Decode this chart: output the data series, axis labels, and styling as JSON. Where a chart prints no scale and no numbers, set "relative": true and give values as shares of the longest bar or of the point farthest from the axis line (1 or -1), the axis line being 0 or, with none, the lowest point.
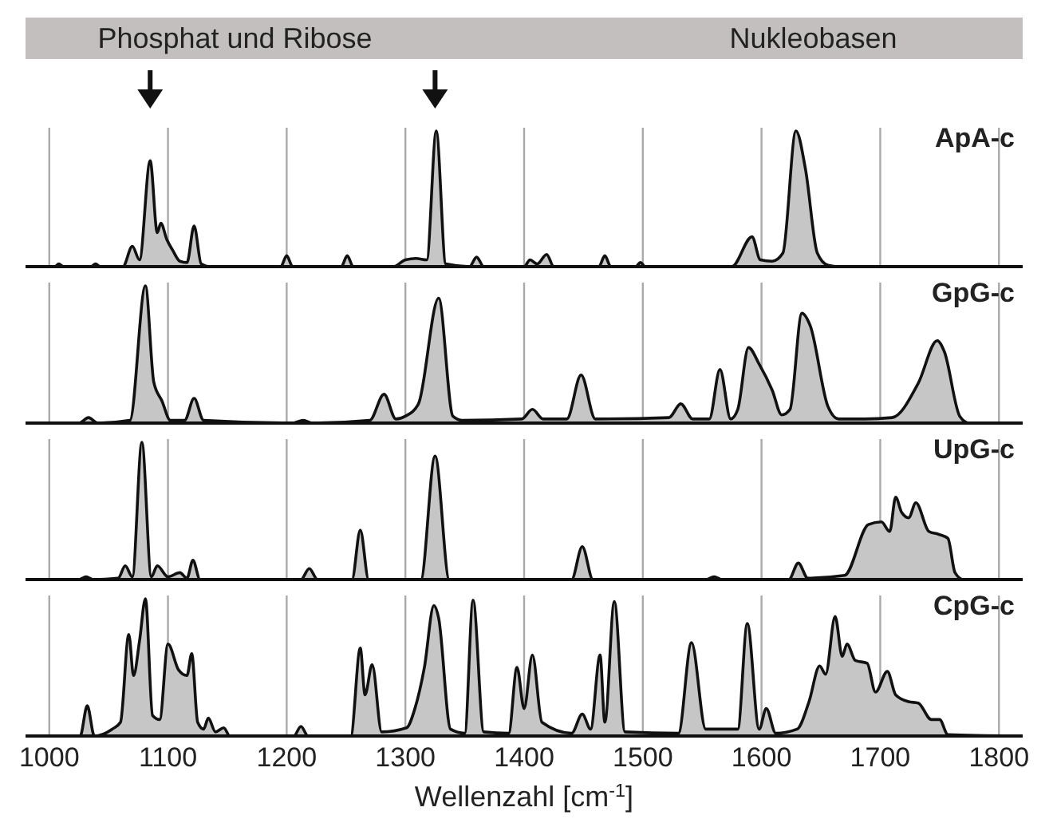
{
  "chart_data": [
    {
      "type": "area",
      "relative": true,
      "xlim": [
        980,
        1820
      ],
      "xticks": [
        1000,
        1100,
        1200,
        1300,
        1400,
        1500,
        1600,
        1700,
        1800
      ],
      "grid": "x",
      "tick_labels": false,
      "annotations": [
        "Phosphat und Ribose",
        "Nukleobasen"
      ],
      "x": [
        980,
        1005,
        1008,
        1012,
        1035,
        1039,
        1043,
        1062,
        1070,
        1076,
        1085,
        1091,
        1094,
        1099,
        1104,
        1110,
        1116,
        1122,
        1128,
        1135,
        1195,
        1200,
        1205,
        1246,
        1251,
        1256,
        1290,
        1300,
        1309,
        1318,
        1326,
        1334,
        1354,
        1360,
        1366,
        1400,
        1405,
        1411,
        1419,
        1425,
        1463,
        1468,
        1473,
        1494,
        1498,
        1502,
        1575,
        1592,
        1599,
        1609,
        1618,
        1629,
        1637,
        1647,
        1656,
        1665,
        1820
      ],
      "series": [
        {
          "name": "ApA-c",
          "color": "#c6c6c6",
          "values": [
            0,
            0,
            0.02,
            0,
            0,
            0.02,
            0,
            0,
            0.15,
            0.05,
            0.78,
            0.25,
            0.32,
            0.2,
            0.12,
            0.04,
            0.03,
            0.3,
            0.02,
            0,
            0,
            0.08,
            0,
            0,
            0.08,
            0,
            0,
            0.05,
            0.06,
            0.05,
            1,
            0.02,
            0,
            0.07,
            0,
            0,
            0.05,
            0.02,
            0.09,
            0,
            0,
            0.08,
            0,
            0,
            0.03,
            0,
            0,
            0.22,
            0.05,
            0.04,
            0.1,
            1,
            0.72,
            0.1,
            0.01,
            0,
            0
          ]
        }
      ]
    },
    {
      "type": "area",
      "relative": true,
      "xlim": [
        980,
        1820
      ],
      "xticks": [
        1000,
        1100,
        1200,
        1300,
        1400,
        1500,
        1600,
        1700,
        1800
      ],
      "grid": "x",
      "tick_labels": false,
      "x": [
        980,
        1025,
        1033,
        1041,
        1068,
        1081,
        1088,
        1095,
        1102,
        1114,
        1122,
        1130,
        1205,
        1214,
        1222,
        1270,
        1282,
        1292,
        1300,
        1311,
        1328,
        1340,
        1348,
        1398,
        1407,
        1416,
        1436,
        1448,
        1460,
        1522,
        1532,
        1542,
        1556,
        1565,
        1574,
        1580,
        1589,
        1598,
        1609,
        1617,
        1624,
        1634,
        1641,
        1656,
        1665,
        1687,
        1710,
        1732,
        1748,
        1754,
        1767,
        1775,
        1820
      ],
      "series": [
        {
          "name": "GpG-c",
          "color": "#c6c6c6",
          "values": [
            0,
            0,
            0.04,
            0,
            0.02,
            1,
            0.3,
            0.16,
            0.02,
            0.02,
            0.18,
            0.02,
            0,
            0.02,
            0,
            0.02,
            0.21,
            0.03,
            0.05,
            0.14,
            0.91,
            0.05,
            0.02,
            0.03,
            0.1,
            0.03,
            0.03,
            0.35,
            0.03,
            0.04,
            0.14,
            0.03,
            0.03,
            0.39,
            0.03,
            0.1,
            0.55,
            0.43,
            0.24,
            0.06,
            0.1,
            0.8,
            0.71,
            0.12,
            0.03,
            0.03,
            0.04,
            0.29,
            0.6,
            0.52,
            0.05,
            0,
            0
          ]
        }
      ]
    },
    {
      "type": "area",
      "relative": true,
      "xlim": [
        980,
        1820
      ],
      "xticks": [
        1000,
        1100,
        1200,
        1300,
        1400,
        1500,
        1600,
        1700,
        1800
      ],
      "grid": "x",
      "tick_labels": false,
      "x": [
        980,
        1025,
        1031,
        1037,
        1058,
        1064,
        1070,
        1078,
        1086,
        1091,
        1100,
        1110,
        1116,
        1121,
        1127,
        1212,
        1219,
        1226,
        1255,
        1262,
        1269,
        1313,
        1325,
        1337,
        1440,
        1449,
        1458,
        1553,
        1560,
        1567,
        1623,
        1631,
        1639,
        1670,
        1690,
        1701,
        1708,
        1713,
        1718,
        1724,
        1730,
        1741,
        1749,
        1757,
        1763,
        1770,
        1820
      ],
      "series": [
        {
          "name": "UpG-c",
          "color": "#c6c6c6",
          "values": [
            0,
            0,
            0.02,
            0,
            0.01,
            0.1,
            0.02,
            1,
            0.02,
            0.1,
            0.02,
            0.05,
            0.01,
            0.14,
            0,
            0,
            0.08,
            0,
            0,
            0.36,
            0,
            0,
            0.9,
            0,
            0,
            0.24,
            0,
            0,
            0.02,
            0,
            0,
            0.12,
            0.01,
            0.03,
            0.4,
            0.42,
            0.35,
            0.6,
            0.49,
            0.45,
            0.56,
            0.35,
            0.33,
            0.3,
            0.05,
            0,
            0
          ]
        }
      ]
    },
    {
      "type": "area",
      "relative": true,
      "xlim": [
        980,
        1820
      ],
      "xticks": [
        1000,
        1100,
        1200,
        1300,
        1400,
        1500,
        1600,
        1700,
        1800
      ],
      "grid": "x",
      "tick_labels": "x",
      "xlabel": "Wellenzahl [cm$^{-1}$]",
      "x": [
        980,
        1026,
        1032,
        1038,
        1053,
        1060,
        1067,
        1071,
        1076,
        1081,
        1087,
        1093,
        1100,
        1109,
        1116,
        1120,
        1125,
        1130,
        1134,
        1140,
        1147,
        1152,
        1206,
        1212,
        1218,
        1254,
        1262,
        1266,
        1272,
        1280,
        1301,
        1308,
        1316,
        1324,
        1328,
        1338,
        1350,
        1357,
        1366,
        1387,
        1394,
        1400,
        1407,
        1415,
        1440,
        1449,
        1456,
        1464,
        1468,
        1476,
        1485,
        1530,
        1541,
        1553,
        1580,
        1588,
        1598,
        1604,
        1612,
        1630,
        1640,
        1649,
        1654,
        1662,
        1668,
        1672,
        1679,
        1689,
        1696,
        1706,
        1713,
        1724,
        1732,
        1743,
        1750,
        1757,
        1820
      ],
      "series": [
        {
          "name": "CpG-c",
          "color": "#c6c6c6",
          "values": [
            0,
            0,
            0.22,
            0,
            0.05,
            0.1,
            0.74,
            0.44,
            0.69,
            1,
            0.15,
            0.12,
            0.67,
            0.48,
            0.44,
            0.6,
            0.1,
            0.05,
            0.13,
            0.03,
            0.06,
            0,
            0,
            0.07,
            0,
            0,
            0.64,
            0.3,
            0.52,
            0.03,
            0.06,
            0.2,
            0.5,
            0.95,
            0.86,
            0.05,
            0.02,
            0.99,
            0.03,
            0.02,
            0.5,
            0.2,
            0.59,
            0.1,
            0.02,
            0.16,
            0.05,
            0.59,
            0.1,
            0.98,
            0.03,
            0.02,
            0.68,
            0.05,
            0.05,
            0.82,
            0.05,
            0.2,
            0.02,
            0.05,
            0.25,
            0.51,
            0.45,
            0.87,
            0.58,
            0.67,
            0.55,
            0.53,
            0.32,
            0.47,
            0.3,
            0.25,
            0.24,
            0.12,
            0.12,
            0.01,
            0
          ]
        }
      ]
    }
  ]
}
